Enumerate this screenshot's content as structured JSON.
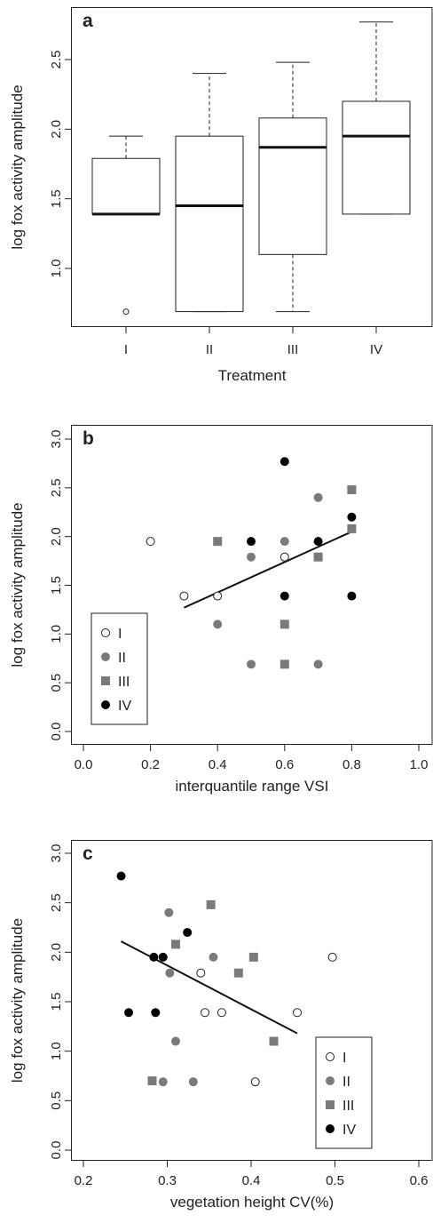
{
  "colors": {
    "I": "#ffffff",
    "II": "#7a7a7a",
    "III": "#7a7a7a",
    "IV": "#000000",
    "stroke_I": "#222222"
  },
  "chart_data": [
    {
      "type": "box",
      "panel_label": "a",
      "xlabel": "Treatment",
      "ylabel": "log fox activity amplitude",
      "ylim": [
        0.6,
        2.8
      ],
      "y_ticks": [
        "1.0",
        "1.5",
        "2.0",
        "2.5"
      ],
      "categories": [
        "I",
        "II",
        "III",
        "IV"
      ],
      "boxes": [
        {
          "name": "I",
          "whisker_low": 1.39,
          "q1": 1.39,
          "median": 1.39,
          "q3": 1.79,
          "whisker_high": 1.95,
          "outliers": [
            0.69
          ]
        },
        {
          "name": "II",
          "whisker_low": 0.69,
          "q1": 0.69,
          "median": 1.45,
          "q3": 1.95,
          "whisker_high": 2.4,
          "outliers": []
        },
        {
          "name": "III",
          "whisker_low": 0.69,
          "q1": 1.1,
          "median": 1.87,
          "q3": 2.08,
          "whisker_high": 2.48,
          "outliers": []
        },
        {
          "name": "IV",
          "whisker_low": 1.39,
          "q1": 1.39,
          "median": 1.95,
          "q3": 2.2,
          "whisker_high": 2.77,
          "outliers": []
        }
      ]
    },
    {
      "type": "scatter",
      "panel_label": "b",
      "xlabel": "interquantile range VSI",
      "ylabel": "log fox activity amplitude",
      "xlim": [
        0.0,
        1.0
      ],
      "ylim": [
        0.0,
        3.0
      ],
      "x_ticks": [
        "0.0",
        "0.2",
        "0.4",
        "0.6",
        "0.8",
        "1.0"
      ],
      "y_ticks": [
        "0.0",
        "0.5",
        "1.0",
        "1.5",
        "2.0",
        "2.5",
        "3.0"
      ],
      "legend": [
        "I",
        "II",
        "III",
        "IV"
      ],
      "legend_position": "bottom-left",
      "fit_line": {
        "x": [
          0.3,
          0.8
        ],
        "y": [
          1.27,
          2.05
        ]
      },
      "series": [
        {
          "name": "I",
          "x": [
            0.2,
            0.3,
            0.4,
            0.6
          ],
          "y": [
            1.95,
            1.39,
            1.39,
            1.79
          ]
        },
        {
          "name": "II",
          "x": [
            0.4,
            0.5,
            0.5,
            0.6,
            0.7,
            0.7
          ],
          "y": [
            1.1,
            0.69,
            1.79,
            1.95,
            2.4,
            0.69
          ]
        },
        {
          "name": "III",
          "x": [
            0.4,
            0.6,
            0.6,
            0.7,
            0.8,
            0.8
          ],
          "y": [
            1.95,
            1.1,
            0.69,
            1.79,
            2.48,
            2.08
          ]
        },
        {
          "name": "IV",
          "x": [
            0.5,
            0.6,
            0.6,
            0.7,
            0.8,
            0.8
          ],
          "y": [
            1.95,
            2.77,
            1.39,
            1.95,
            2.2,
            1.39
          ]
        }
      ]
    },
    {
      "type": "scatter",
      "panel_label": "c",
      "xlabel": "vegetation height CV(%)",
      "ylabel": "log fox activity amplitude",
      "xlim": [
        0.2,
        0.6
      ],
      "ylim": [
        0.0,
        3.0
      ],
      "x_ticks": [
        "0.2",
        "0.3",
        "0.4",
        "0.5",
        "0.6"
      ],
      "y_ticks": [
        "0.0",
        "0.5",
        "1.0",
        "1.5",
        "2.0",
        "2.5",
        "3.0"
      ],
      "legend": [
        "I",
        "II",
        "III",
        "IV"
      ],
      "legend_position": "bottom-right",
      "fit_line": {
        "x": [
          0.245,
          0.455
        ],
        "y": [
          2.11,
          1.18
        ]
      },
      "series": [
        {
          "name": "I",
          "x": [
            0.34,
            0.345,
            0.365,
            0.405,
            0.455,
            0.497
          ],
          "y": [
            1.79,
            1.39,
            1.39,
            0.69,
            1.39,
            1.95
          ]
        },
        {
          "name": "II",
          "x": [
            0.295,
            0.302,
            0.303,
            0.31,
            0.331,
            0.355
          ],
          "y": [
            0.69,
            2.4,
            1.79,
            1.1,
            0.69,
            1.95
          ]
        },
        {
          "name": "III",
          "x": [
            0.282,
            0.31,
            0.352,
            0.385,
            0.403,
            0.427
          ],
          "y": [
            0.7,
            2.08,
            2.48,
            1.79,
            1.95,
            1.1
          ]
        },
        {
          "name": "IV",
          "x": [
            0.245,
            0.254,
            0.284,
            0.286,
            0.295,
            0.324
          ],
          "y": [
            2.77,
            1.39,
            1.95,
            1.39,
            1.95,
            2.2
          ]
        }
      ]
    }
  ]
}
